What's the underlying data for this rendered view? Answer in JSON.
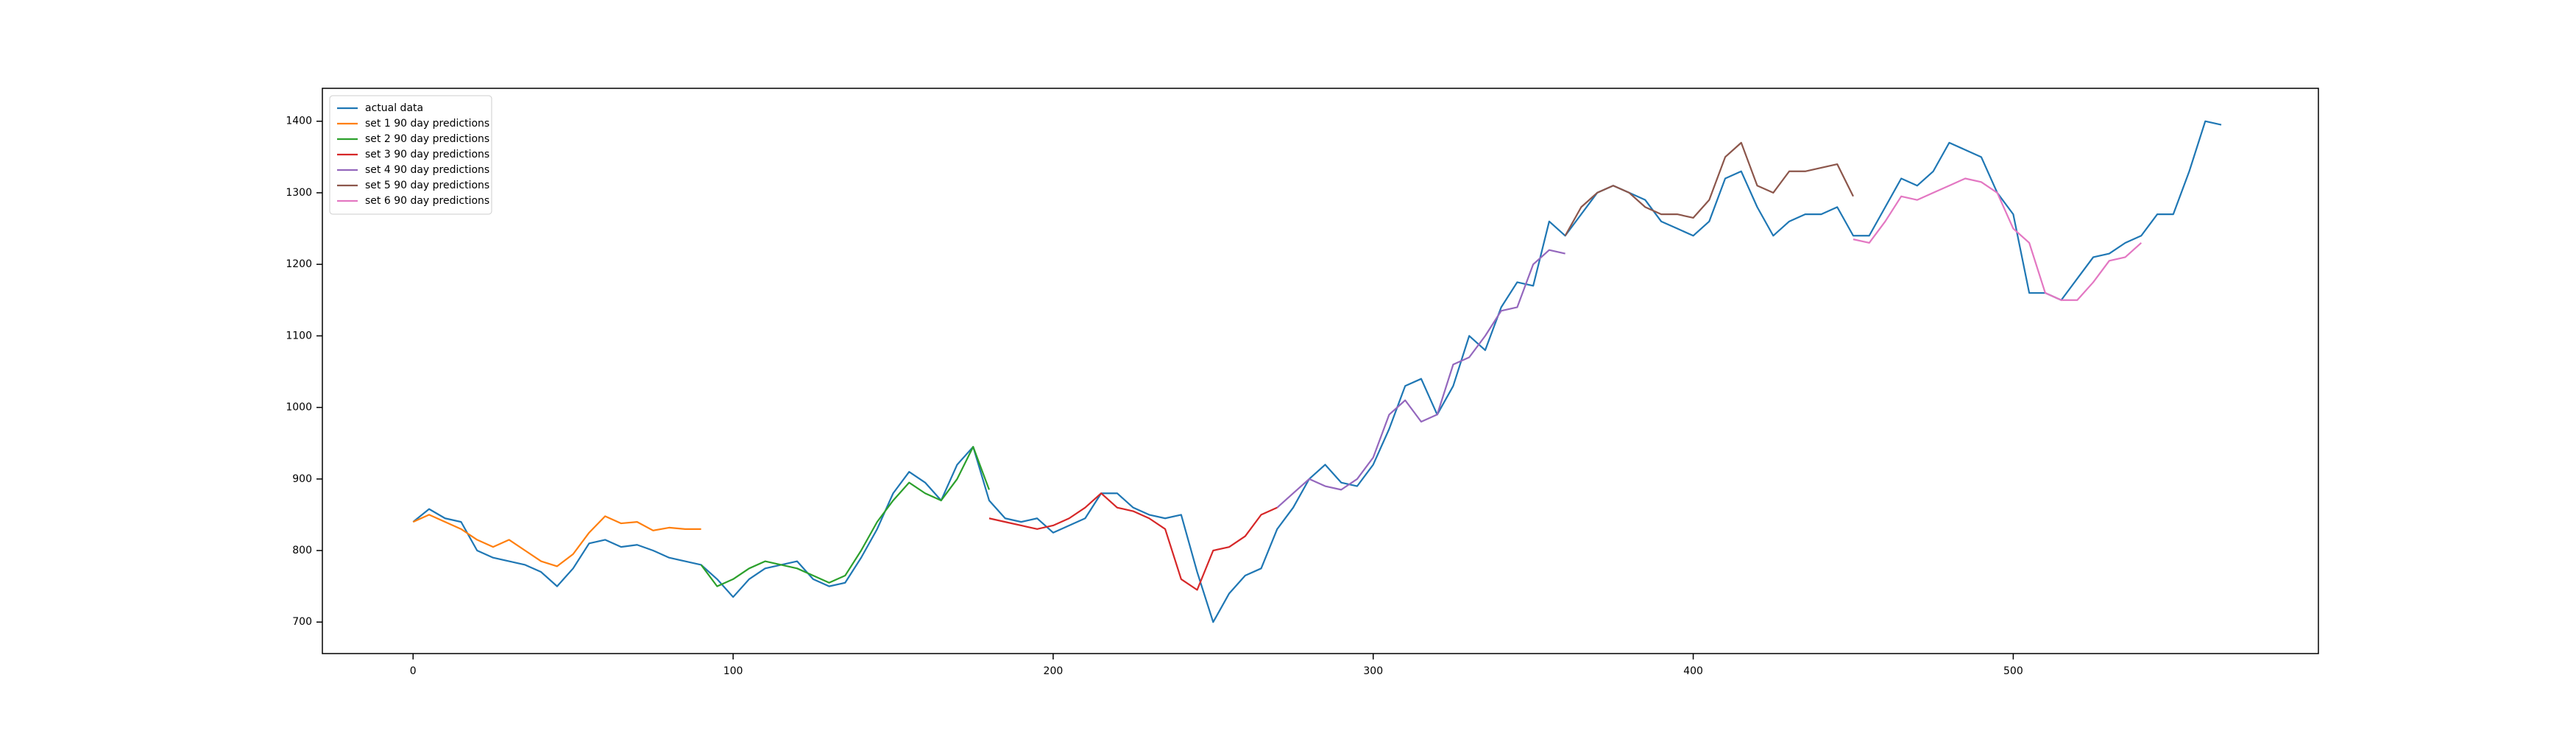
{
  "chart_data": {
    "type": "line",
    "xlim": [
      -28.35,
      595.35
    ],
    "ylim": [
      656,
      1446
    ],
    "xticks": [
      0,
      100,
      200,
      300,
      400,
      500
    ],
    "yticks": [
      700,
      800,
      900,
      1000,
      1100,
      1200,
      1300,
      1400
    ],
    "legend": "upper left",
    "grid": false,
    "series": [
      {
        "name": "actual data",
        "color": "#1f77b4",
        "x": [
          0,
          5,
          10,
          15,
          20,
          25,
          30,
          35,
          40,
          45,
          50,
          55,
          60,
          65,
          70,
          75,
          80,
          85,
          90,
          95,
          100,
          105,
          110,
          115,
          120,
          125,
          130,
          135,
          140,
          145,
          150,
          155,
          160,
          165,
          170,
          175,
          180,
          185,
          190,
          195,
          200,
          205,
          210,
          215,
          220,
          225,
          230,
          235,
          240,
          245,
          250,
          255,
          260,
          265,
          270,
          275,
          280,
          285,
          290,
          295,
          300,
          305,
          310,
          315,
          320,
          325,
          330,
          335,
          340,
          345,
          350,
          355,
          360,
          365,
          370,
          375,
          380,
          385,
          390,
          395,
          400,
          405,
          410,
          415,
          420,
          425,
          430,
          435,
          440,
          445,
          450,
          455,
          460,
          465,
          470,
          475,
          480,
          485,
          490,
          495,
          500,
          505,
          510,
          515,
          520,
          525,
          530,
          535,
          540,
          545,
          550,
          555,
          560,
          565
        ],
        "values": [
          840,
          858,
          845,
          840,
          800,
          790,
          785,
          780,
          770,
          750,
          775,
          810,
          815,
          805,
          808,
          800,
          790,
          785,
          780,
          760,
          735,
          760,
          775,
          780,
          785,
          760,
          750,
          755,
          790,
          830,
          880,
          910,
          895,
          870,
          920,
          945,
          870,
          845,
          840,
          845,
          825,
          835,
          845,
          880,
          880,
          860,
          850,
          845,
          850,
          770,
          700,
          740,
          765,
          775,
          830,
          860,
          900,
          920,
          895,
          890,
          920,
          970,
          1030,
          1040,
          990,
          1030,
          1100,
          1080,
          1140,
          1175,
          1170,
          1260,
          1240,
          1270,
          1300,
          1310,
          1300,
          1290,
          1260,
          1250,
          1240,
          1260,
          1320,
          1330,
          1280,
          1240,
          1260,
          1270,
          1270,
          1280,
          1240,
          1240,
          1280,
          1320,
          1310,
          1330,
          1370,
          1360,
          1350,
          1300,
          1270,
          1160,
          1160,
          1150,
          1180,
          1210,
          1215,
          1230,
          1240,
          1270,
          1270,
          1330,
          1400,
          1395
        ]
      },
      {
        "name": "set 1 90 day predictions",
        "color": "#ff7f0e",
        "x": [
          0,
          5,
          10,
          15,
          20,
          25,
          30,
          35,
          40,
          45,
          50,
          55,
          60,
          65,
          70,
          75,
          80,
          85,
          90
        ],
        "values": [
          840,
          850,
          840,
          830,
          815,
          805,
          815,
          800,
          785,
          778,
          795,
          825,
          848,
          838,
          840,
          828,
          832,
          830,
          830
        ]
      },
      {
        "name": "set 2 90 day predictions",
        "color": "#2ca02c",
        "x": [
          90,
          95,
          100,
          105,
          110,
          115,
          120,
          125,
          130,
          135,
          140,
          145,
          150,
          155,
          160,
          165,
          170,
          175,
          180
        ],
        "values": [
          780,
          750,
          760,
          775,
          785,
          780,
          775,
          765,
          755,
          765,
          800,
          840,
          870,
          895,
          880,
          870,
          900,
          945,
          885
        ]
      },
      {
        "name": "set 3 90 day predictions",
        "color": "#d62728",
        "x": [
          180,
          185,
          190,
          195,
          200,
          205,
          210,
          215,
          220,
          225,
          230,
          235,
          240,
          245,
          250,
          255,
          260,
          265,
          270
        ],
        "values": [
          845,
          840,
          835,
          830,
          835,
          845,
          860,
          880,
          860,
          855,
          845,
          830,
          760,
          745,
          800,
          805,
          820,
          850,
          860
        ]
      },
      {
        "name": "set 4 90 day predictions",
        "color": "#9467bd",
        "x": [
          270,
          275,
          280,
          285,
          290,
          295,
          300,
          305,
          310,
          315,
          320,
          325,
          330,
          335,
          340,
          345,
          350,
          355,
          360
        ],
        "values": [
          860,
          880,
          900,
          890,
          885,
          900,
          930,
          990,
          1010,
          980,
          990,
          1060,
          1070,
          1100,
          1135,
          1140,
          1200,
          1220,
          1215
        ]
      },
      {
        "name": "set 5 90 day predictions",
        "color": "#8c564b",
        "x": [
          360,
          365,
          370,
          375,
          380,
          385,
          390,
          395,
          400,
          405,
          410,
          415,
          420,
          425,
          430,
          435,
          440,
          445,
          450
        ],
        "values": [
          1240,
          1280,
          1300,
          1310,
          1300,
          1280,
          1270,
          1270,
          1265,
          1290,
          1350,
          1370,
          1310,
          1300,
          1330,
          1330,
          1335,
          1340,
          1295
        ]
      },
      {
        "name": "set 6 90 day predictions",
        "color": "#e377c2",
        "x": [
          450,
          455,
          460,
          465,
          470,
          475,
          480,
          485,
          490,
          495,
          500,
          505,
          510,
          515,
          520,
          525,
          530,
          535,
          540
        ],
        "values": [
          1235,
          1230,
          1260,
          1295,
          1290,
          1300,
          1310,
          1320,
          1315,
          1300,
          1250,
          1230,
          1160,
          1150,
          1150,
          1175,
          1205,
          1210,
          1230
        ]
      }
    ]
  }
}
